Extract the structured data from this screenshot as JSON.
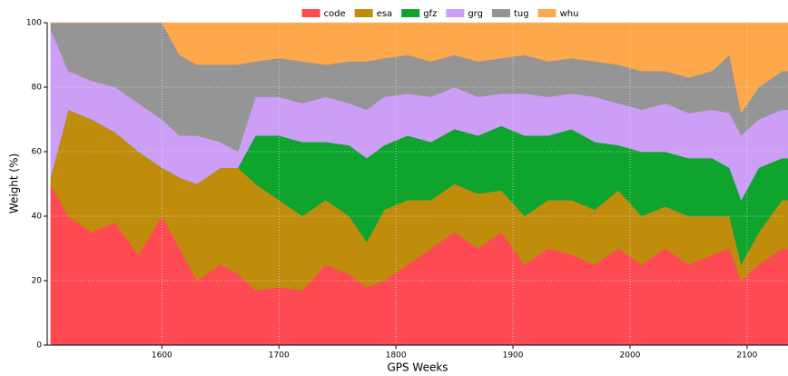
{
  "chart_data": {
    "type": "stacked-area",
    "xlabel": "GPS Weeks",
    "ylabel": "Weight (%)",
    "x": [
      1505,
      1520,
      1540,
      1560,
      1580,
      1600,
      1615,
      1630,
      1650,
      1665,
      1680,
      1700,
      1720,
      1740,
      1760,
      1775,
      1790,
      1810,
      1830,
      1850,
      1870,
      1890,
      1910,
      1930,
      1950,
      1970,
      1990,
      2010,
      2030,
      2050,
      2070,
      2085,
      2095,
      2110,
      2130,
      2135
    ],
    "series": [
      {
        "name": "code",
        "color": "#fe4a52",
        "values": [
          50,
          40,
          35,
          38,
          28,
          40,
          30,
          20,
          25,
          22,
          17,
          18,
          17,
          25,
          22,
          18,
          20,
          25,
          30,
          35,
          30,
          35,
          25,
          30,
          28,
          25,
          30,
          25,
          30,
          25,
          28,
          30,
          20,
          25,
          30,
          30
        ]
      },
      {
        "name": "esa",
        "color": "#bf8c0c",
        "values": [
          2,
          33,
          35,
          28,
          32,
          15,
          22,
          30,
          30,
          33,
          33,
          27,
          23,
          20,
          18,
          14,
          22,
          20,
          15,
          15,
          17,
          13,
          15,
          15,
          17,
          17,
          18,
          15,
          13,
          15,
          12,
          10,
          5,
          10,
          15,
          15
        ]
      },
      {
        "name": "gfz",
        "color": "#0ea42e",
        "values": [
          0,
          0,
          0,
          0,
          0,
          0,
          0,
          0,
          0,
          0,
          15,
          20,
          23,
          18,
          22,
          26,
          20,
          20,
          18,
          17,
          18,
          20,
          25,
          20,
          22,
          21,
          14,
          20,
          17,
          18,
          18,
          15,
          20,
          20,
          13,
          13
        ]
      },
      {
        "name": "grg",
        "color": "#cc9ef6",
        "values": [
          46,
          12,
          12,
          14,
          15,
          15,
          13,
          15,
          8,
          5,
          12,
          12,
          12,
          14,
          13,
          15,
          15,
          13,
          14,
          13,
          12,
          10,
          13,
          12,
          11,
          14,
          13,
          13,
          15,
          14,
          15,
          17,
          20,
          15,
          15,
          15
        ]
      },
      {
        "name": "tug",
        "color": "#959595",
        "values": [
          2,
          15,
          18,
          20,
          25,
          30,
          25,
          22,
          24,
          27,
          11,
          12,
          13,
          10,
          13,
          15,
          12,
          12,
          11,
          10,
          11,
          11,
          12,
          11,
          11,
          11,
          12,
          12,
          10,
          11,
          12,
          18,
          7,
          10,
          12,
          12
        ]
      },
      {
        "name": "whu",
        "color": "#fda84a",
        "values": [
          0,
          0,
          0,
          0,
          0,
          0,
          10,
          13,
          13,
          13,
          12,
          11,
          12,
          13,
          12,
          12,
          11,
          10,
          12,
          10,
          12,
          11,
          10,
          12,
          11,
          12,
          13,
          15,
          15,
          17,
          15,
          10,
          28,
          20,
          15,
          15
        ]
      }
    ],
    "xlim": [
      1502,
      2135
    ],
    "xticks": [
      1600,
      1700,
      1800,
      1900,
      2000,
      2100
    ],
    "ylim": [
      0,
      100
    ],
    "yticks": [
      0,
      20,
      40,
      60,
      80,
      100
    ],
    "grid": true,
    "legend": "top"
  }
}
